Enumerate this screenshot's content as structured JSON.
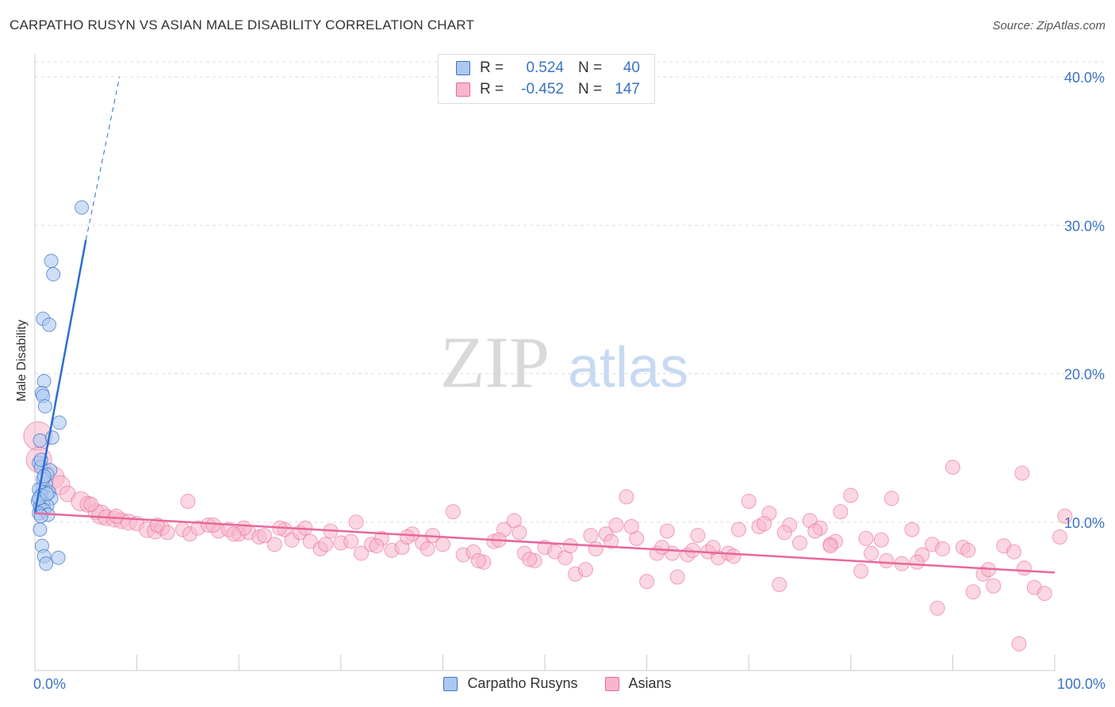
{
  "title": "CARPATHO RUSYN VS ASIAN MALE DISABILITY CORRELATION CHART",
  "source": "Source: ZipAtlas.com",
  "watermark": {
    "zip": "ZIP",
    "atlas": "atlas"
  },
  "colors": {
    "blue": "#3a72c4",
    "blue_fill": "#adc8f0",
    "blue_line": "#2a6dd4",
    "pink_fill": "#f7b6cb",
    "pink_line": "#e8679a",
    "grid": "#dddddd"
  },
  "legend_top": [
    {
      "r_label": "R =",
      "r_value": "0.524",
      "n_label": "N =",
      "n_value": "40"
    },
    {
      "r_label": "R =",
      "r_value": "-0.452",
      "n_label": "N =",
      "n_value": "147"
    }
  ],
  "chart_data": {
    "type": "scatter",
    "title": "CARPATHO RUSYN VS ASIAN MALE DISABILITY CORRELATION CHART",
    "xlabel": "",
    "ylabel": "Male Disability",
    "xlim": [
      0,
      100
    ],
    "ylim": [
      0,
      40
    ],
    "x_tick_labels": [
      "0.0%",
      "100.0%"
    ],
    "y_tick_labels": [
      "10.0%",
      "20.0%",
      "30.0%",
      "40.0%"
    ],
    "y_ticks": [
      10,
      20,
      30,
      40
    ],
    "grid": true,
    "legend_position": "bottom",
    "series": [
      {
        "name": "Carpatho Rusyns",
        "trend": {
          "x0": 0.0,
          "y0": 10.6,
          "x1": 5.0,
          "y1": 29.0,
          "dash_to_x": 8.3,
          "dash_to_y": 40.0
        },
        "points": [
          [
            4.6,
            31.2
          ],
          [
            1.6,
            27.6
          ],
          [
            1.8,
            26.7
          ],
          [
            0.8,
            23.7
          ],
          [
            1.4,
            23.3
          ],
          [
            0.9,
            19.5
          ],
          [
            0.7,
            18.7
          ],
          [
            0.8,
            18.5
          ],
          [
            1.0,
            17.8
          ],
          [
            2.4,
            16.7
          ],
          [
            0.5,
            15.5
          ],
          [
            1.7,
            15.7
          ],
          [
            0.4,
            14.0
          ],
          [
            0.6,
            13.7
          ],
          [
            1.5,
            13.5
          ],
          [
            1.2,
            13.2
          ],
          [
            0.8,
            12.4
          ],
          [
            1.1,
            12.6
          ],
          [
            0.4,
            12.2
          ],
          [
            1.4,
            12.0
          ],
          [
            0.6,
            11.8
          ],
          [
            1.6,
            11.6
          ],
          [
            0.3,
            11.4
          ],
          [
            0.8,
            11.3
          ],
          [
            1.2,
            11.1
          ],
          [
            0.5,
            11.0
          ],
          [
            0.9,
            10.8
          ],
          [
            0.4,
            10.6
          ],
          [
            1.3,
            10.5
          ],
          [
            0.6,
            10.4
          ],
          [
            0.5,
            9.5
          ],
          [
            0.7,
            8.4
          ],
          [
            0.9,
            7.7
          ],
          [
            1.1,
            7.2
          ],
          [
            2.3,
            7.6
          ],
          [
            0.4,
            11.6
          ],
          [
            0.8,
            12.9
          ],
          [
            1.2,
            11.9
          ],
          [
            0.6,
            14.2
          ],
          [
            0.9,
            13.1
          ]
        ]
      },
      {
        "name": "Asians",
        "trend": {
          "x0": 0.0,
          "y0": 10.6,
          "x1": 100.0,
          "y1": 6.6
        },
        "points": [
          [
            0.3,
            15.8,
            18
          ],
          [
            0.4,
            14.2,
            16
          ],
          [
            1.8,
            13.0,
            14
          ],
          [
            2.5,
            12.5,
            12
          ],
          [
            3.2,
            11.9,
            10
          ],
          [
            4.5,
            11.4,
            12
          ],
          [
            5.2,
            11.2,
            10
          ],
          [
            6.0,
            10.7,
            10
          ],
          [
            6.5,
            10.5,
            12
          ],
          [
            7.0,
            10.3,
            10
          ],
          [
            7.8,
            10.2,
            10
          ],
          [
            8.5,
            10.1,
            10
          ],
          [
            9.2,
            10.0,
            10
          ],
          [
            10.0,
            9.9,
            9
          ],
          [
            11.0,
            9.5,
            10
          ],
          [
            11.8,
            9.4,
            10
          ],
          [
            12.5,
            9.6,
            9
          ],
          [
            13.0,
            9.3,
            9
          ],
          [
            14.5,
            9.5,
            9
          ],
          [
            15.2,
            9.2,
            9
          ],
          [
            16.0,
            9.6,
            9
          ],
          [
            17.0,
            9.8,
            9
          ],
          [
            18.0,
            9.4,
            9
          ],
          [
            19.0,
            9.5,
            9
          ],
          [
            20.0,
            9.2,
            9
          ],
          [
            21.0,
            9.3,
            9
          ],
          [
            22.0,
            9.0,
            9
          ],
          [
            23.5,
            8.5,
            9
          ],
          [
            24.5,
            9.5,
            9
          ],
          [
            25.2,
            8.8,
            9
          ],
          [
            26.0,
            9.3,
            9
          ],
          [
            27.0,
            8.7,
            9
          ],
          [
            28.0,
            8.2,
            9
          ],
          [
            29.0,
            9.4,
            9
          ],
          [
            30.0,
            8.6,
            9
          ],
          [
            31.5,
            10.0,
            9
          ],
          [
            32.0,
            7.9,
            9
          ],
          [
            33.0,
            8.5,
            9
          ],
          [
            34.0,
            8.9,
            9
          ],
          [
            35.0,
            8.1,
            9
          ],
          [
            36.0,
            8.3,
            9
          ],
          [
            37.0,
            9.2,
            9
          ],
          [
            38.0,
            8.6,
            9
          ],
          [
            39.0,
            9.1,
            9
          ],
          [
            40.0,
            8.5,
            9
          ],
          [
            41.0,
            10.7,
            9
          ],
          [
            42.0,
            7.8,
            9
          ],
          [
            43.0,
            8.0,
            9
          ],
          [
            44.0,
            7.3,
            9
          ],
          [
            45.0,
            8.7,
            9
          ],
          [
            46.0,
            9.5,
            9
          ],
          [
            47.0,
            10.1,
            9
          ],
          [
            48.0,
            7.9,
            9
          ],
          [
            49.0,
            7.4,
            9
          ],
          [
            50.0,
            8.3,
            9
          ],
          [
            51.0,
            8.0,
            9
          ],
          [
            52.0,
            7.6,
            9
          ],
          [
            53.0,
            6.5,
            9
          ],
          [
            54.0,
            6.8,
            9
          ],
          [
            55.0,
            8.2,
            9
          ],
          [
            56.0,
            9.2,
            9
          ],
          [
            57.0,
            9.8,
            9
          ],
          [
            58.0,
            11.7,
            9
          ],
          [
            59.0,
            8.9,
            9
          ],
          [
            60.0,
            6.0,
            9
          ],
          [
            61.0,
            7.9,
            9
          ],
          [
            62.0,
            9.4,
            9
          ],
          [
            63.0,
            6.3,
            9
          ],
          [
            64.0,
            7.8,
            9
          ],
          [
            65.0,
            9.1,
            9
          ],
          [
            66.0,
            8.0,
            9
          ],
          [
            67.0,
            7.6,
            9
          ],
          [
            68.0,
            7.9,
            9
          ],
          [
            69.0,
            9.5,
            9
          ],
          [
            70.0,
            11.4,
            9
          ],
          [
            71.0,
            9.7,
            9
          ],
          [
            72.0,
            10.6,
            9
          ],
          [
            73.0,
            5.8,
            9
          ],
          [
            74.0,
            9.8,
            9
          ],
          [
            75.0,
            8.6,
            9
          ],
          [
            76.0,
            10.1,
            9
          ],
          [
            77.0,
            9.6,
            9
          ],
          [
            78.0,
            8.5,
            9
          ],
          [
            79.0,
            10.7,
            9
          ],
          [
            80.0,
            11.8,
            9
          ],
          [
            81.0,
            6.7,
            9
          ],
          [
            82.0,
            7.9,
            9
          ],
          [
            83.0,
            8.8,
            9
          ],
          [
            84.0,
            11.6,
            9
          ],
          [
            85.0,
            7.2,
            9
          ],
          [
            86.0,
            9.5,
            9
          ],
          [
            87.0,
            7.8,
            9
          ],
          [
            88.0,
            8.5,
            9
          ],
          [
            89.0,
            8.2,
            9
          ],
          [
            90.0,
            13.7,
            9
          ],
          [
            91.0,
            8.3,
            9
          ],
          [
            92.0,
            5.3,
            9
          ],
          [
            93.0,
            6.5,
            9
          ],
          [
            94.0,
            5.7,
            9
          ],
          [
            95.0,
            8.4,
            9
          ],
          [
            96.0,
            8.0,
            9
          ],
          [
            97.0,
            6.9,
            9
          ],
          [
            98.0,
            5.6,
            9
          ],
          [
            99.0,
            5.2,
            9
          ],
          [
            100.5,
            9.0,
            9
          ],
          [
            47.5,
            9.3,
            9
          ],
          [
            52.5,
            8.4,
            9
          ],
          [
            58.5,
            9.7,
            9
          ],
          [
            62.5,
            7.9,
            9
          ],
          [
            66.5,
            8.3,
            9
          ],
          [
            71.5,
            9.9,
            9
          ],
          [
            76.5,
            9.4,
            9
          ],
          [
            81.5,
            8.9,
            9
          ],
          [
            86.5,
            7.3,
            9
          ],
          [
            91.5,
            8.1,
            9
          ],
          [
            15.0,
            11.4,
            9
          ],
          [
            17.5,
            9.8,
            9
          ],
          [
            20.5,
            9.6,
            9
          ],
          [
            22.5,
            9.1,
            9
          ],
          [
            26.5,
            9.6,
            9
          ],
          [
            28.5,
            8.5,
            9
          ],
          [
            31.0,
            8.7,
            9
          ],
          [
            33.5,
            8.4,
            9
          ],
          [
            36.5,
            9.0,
            9
          ],
          [
            38.5,
            8.2,
            9
          ],
          [
            43.5,
            7.4,
            9
          ],
          [
            45.5,
            8.8,
            9
          ],
          [
            48.5,
            7.5,
            9
          ],
          [
            54.5,
            9.1,
            9
          ],
          [
            56.5,
            8.7,
            9
          ],
          [
            61.5,
            8.3,
            9
          ],
          [
            64.5,
            8.1,
            9
          ],
          [
            68.5,
            7.7,
            9
          ],
          [
            73.5,
            9.3,
            9
          ],
          [
            78.5,
            8.7,
            9
          ],
          [
            83.5,
            7.4,
            9
          ],
          [
            88.5,
            4.2,
            9
          ],
          [
            93.5,
            6.8,
            9
          ],
          [
            96.5,
            1.8,
            9
          ],
          [
            78.0,
            8.4,
            9
          ],
          [
            96.8,
            13.3,
            9
          ],
          [
            101.0,
            10.4,
            9
          ],
          [
            5.5,
            11.2,
            9
          ],
          [
            8.0,
            10.4,
            9
          ],
          [
            12.0,
            9.8,
            9
          ],
          [
            19.5,
            9.2,
            9
          ],
          [
            24.0,
            9.6,
            9
          ]
        ]
      }
    ]
  }
}
